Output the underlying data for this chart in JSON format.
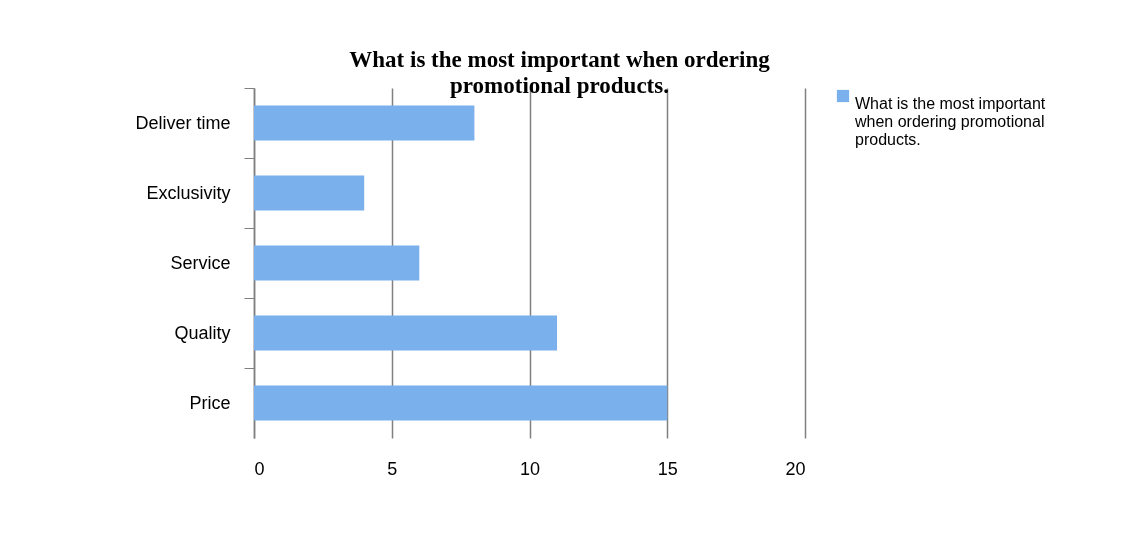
{
  "chart_data": {
    "type": "bar",
    "orientation": "horizontal",
    "title": "What is the most important when ordering promotional products.",
    "categories": [
      "Deliver time",
      "Exclusivity",
      "Service",
      "Quality",
      "Price"
    ],
    "series": [
      {
        "name": "What is the most important when ordering promotional products.",
        "color": "#7ab0ec",
        "values": [
          8,
          4,
          6,
          11,
          15
        ]
      }
    ],
    "xlim": [
      0,
      20
    ],
    "xticks": [
      0,
      5,
      10,
      15,
      20
    ],
    "grid": "x",
    "legend": "right"
  }
}
